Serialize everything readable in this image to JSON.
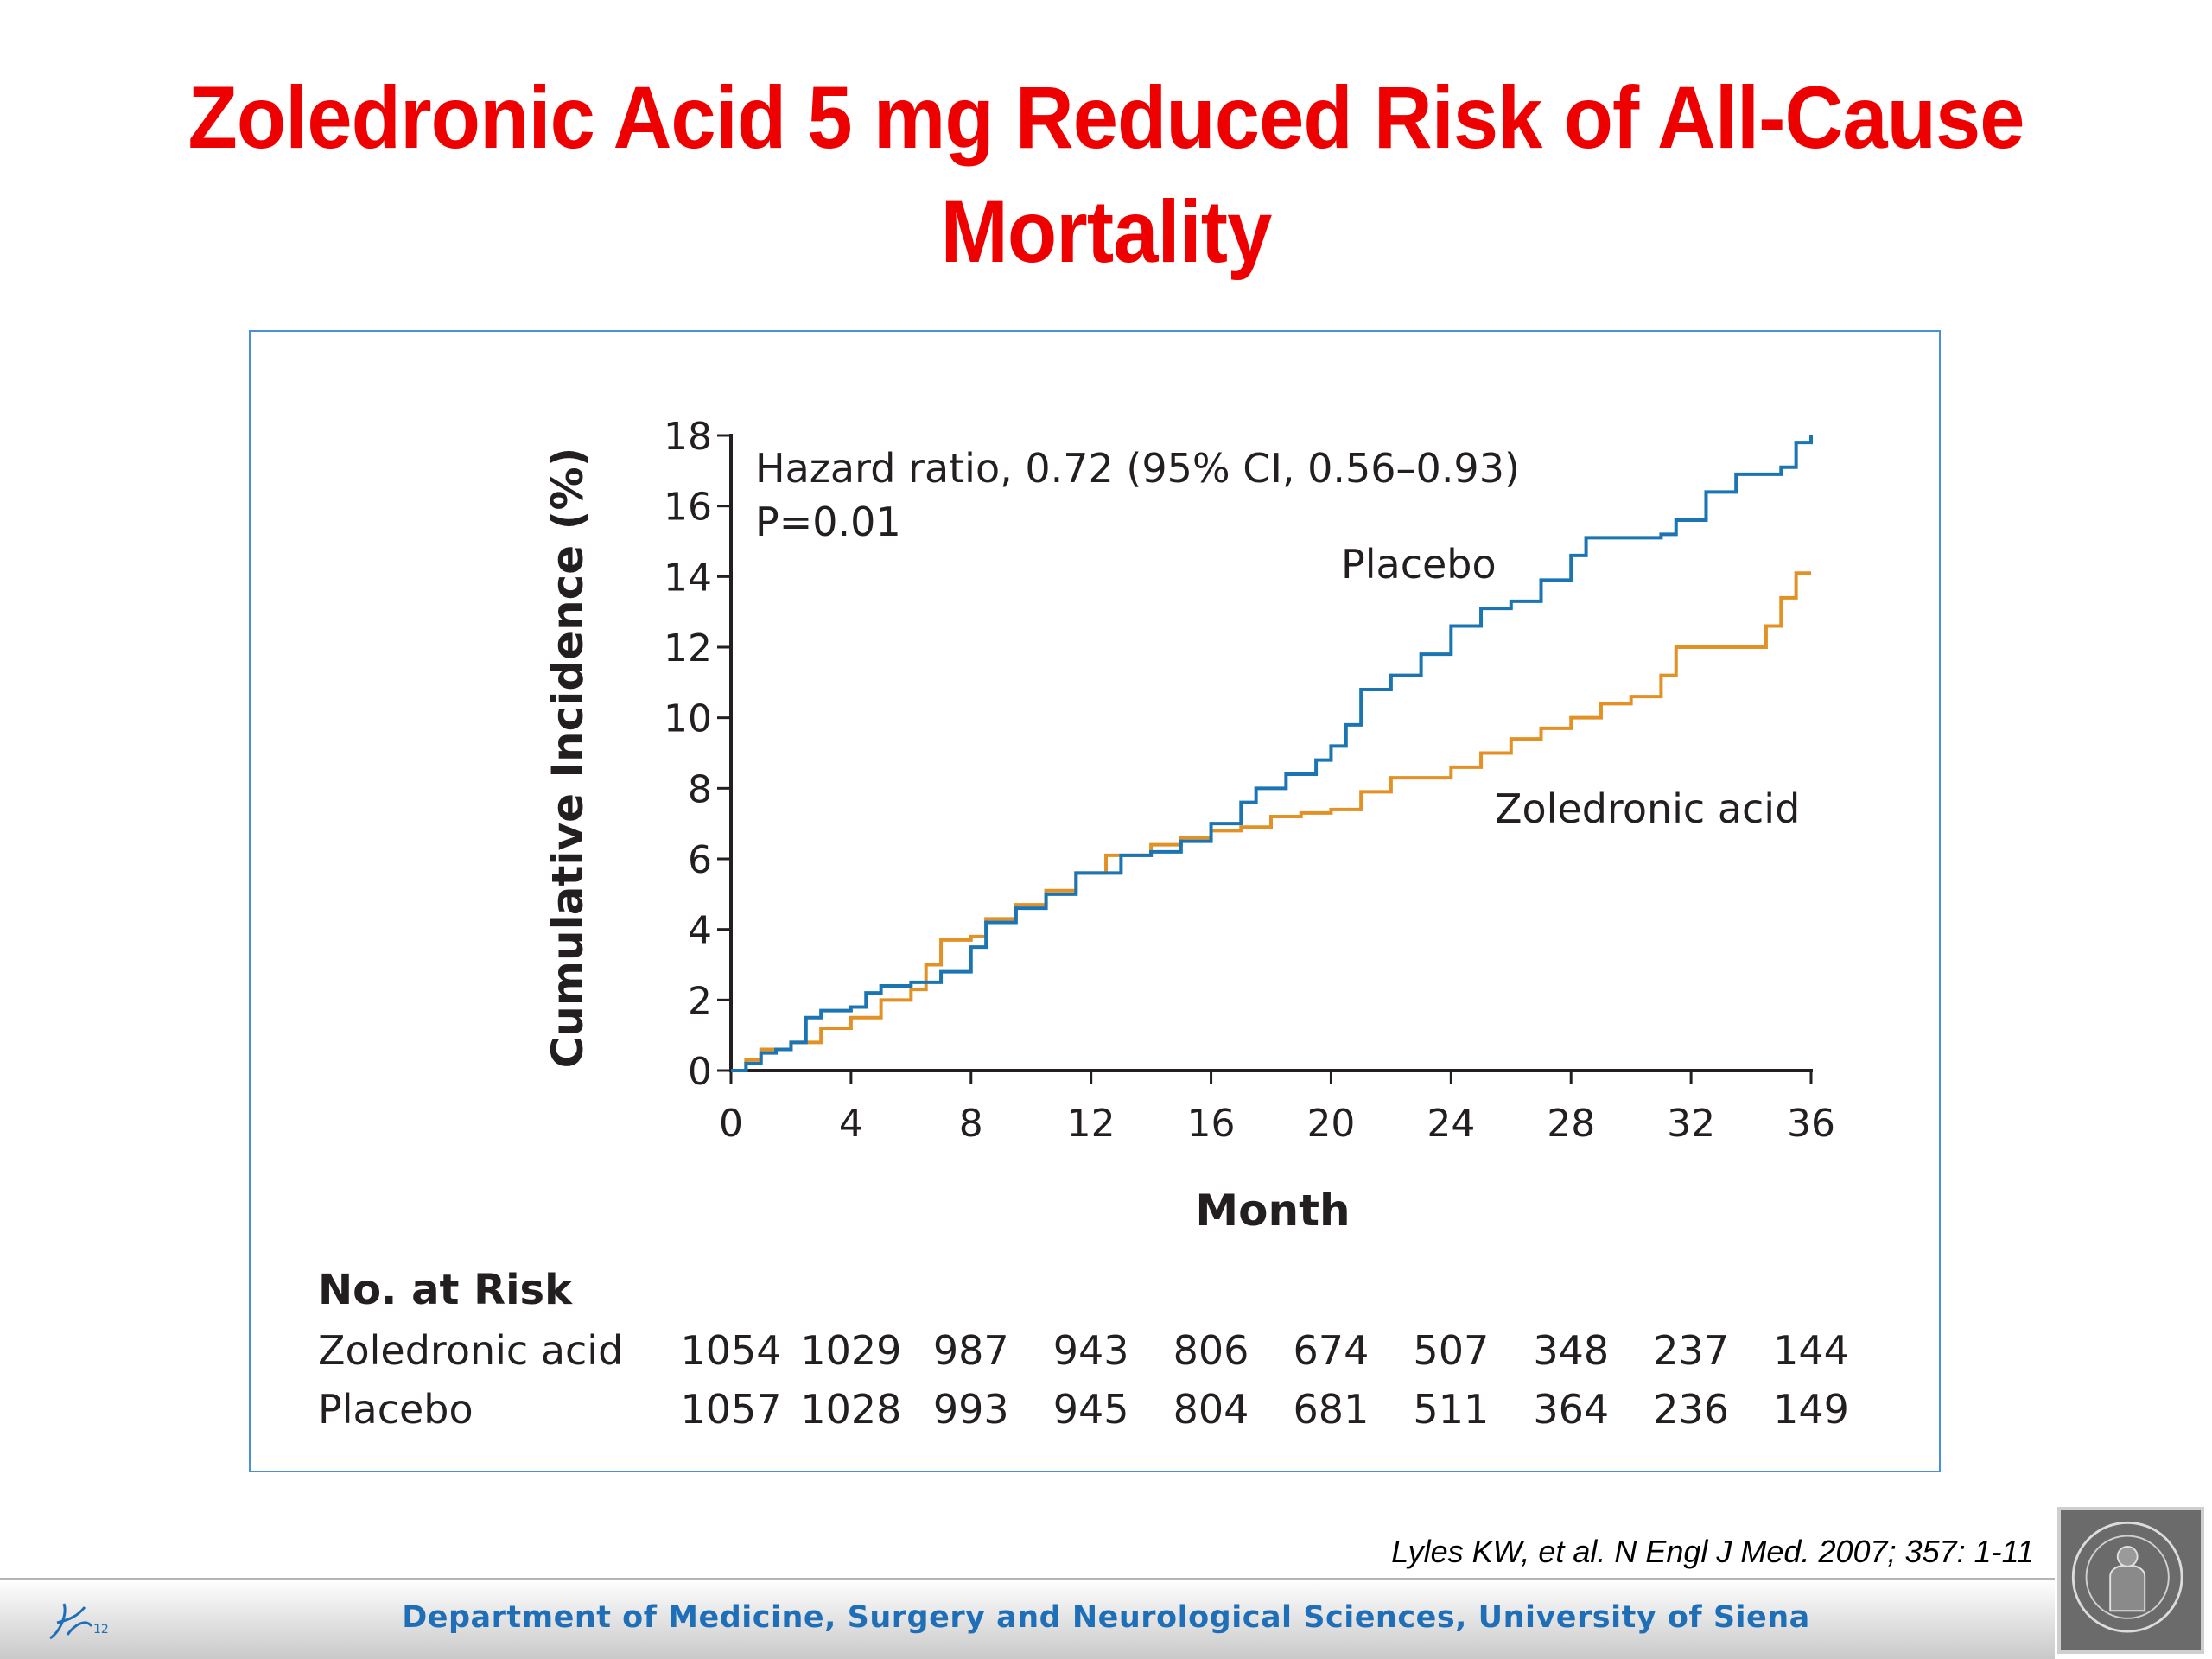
{
  "slide": {
    "title_line1": "Zoledronic Acid 5 mg Reduced Risk of All-Cause",
    "title_line2": "Mortality",
    "citation": "Lyles KW, et al. N Engl J Med. 2007; 357: 1-11",
    "footer": "Department of Medicine, Surgery and Neurological Sciences, University of Siena",
    "footer_logo_page": "12",
    "colors": {
      "title": "#ee0000",
      "footer_text": "#1f6fb8",
      "frame": "#4a90d9"
    }
  },
  "chart_data": {
    "type": "line",
    "title": "",
    "xlabel": "Month",
    "ylabel": "Cumulative Incidence (%)",
    "xlim": [
      0,
      36
    ],
    "ylim": [
      0,
      18
    ],
    "xticks": [
      0,
      4,
      8,
      12,
      16,
      20,
      24,
      28,
      32,
      36
    ],
    "yticks": [
      0,
      2,
      4,
      6,
      8,
      10,
      12,
      14,
      16,
      18
    ],
    "grid": false,
    "legend": "inline labels",
    "annotation_lines": [
      "Hazard ratio, 0.72 (95% CI, 0.56–0.93)",
      "P=0.01"
    ],
    "series": [
      {
        "name": "Placebo",
        "color": "#1b75b3",
        "step": true,
        "points": [
          [
            0,
            0
          ],
          [
            0.5,
            0.2
          ],
          [
            1,
            0.5
          ],
          [
            1.5,
            0.6
          ],
          [
            2,
            0.8
          ],
          [
            2.5,
            1.5
          ],
          [
            3,
            1.7
          ],
          [
            4,
            1.8
          ],
          [
            4.5,
            2.2
          ],
          [
            5,
            2.4
          ],
          [
            6,
            2.5
          ],
          [
            7,
            2.8
          ],
          [
            8,
            3.5
          ],
          [
            8.5,
            4.2
          ],
          [
            9.5,
            4.6
          ],
          [
            10.5,
            5.0
          ],
          [
            11.5,
            5.6
          ],
          [
            13,
            6.1
          ],
          [
            14,
            6.2
          ],
          [
            15,
            6.5
          ],
          [
            16,
            7.0
          ],
          [
            17,
            7.6
          ],
          [
            17.5,
            8.0
          ],
          [
            18.5,
            8.4
          ],
          [
            19.5,
            8.8
          ],
          [
            20,
            9.2
          ],
          [
            20.5,
            9.8
          ],
          [
            21,
            10.8
          ],
          [
            22,
            11.2
          ],
          [
            23,
            11.8
          ],
          [
            24,
            12.6
          ],
          [
            25,
            13.1
          ],
          [
            26,
            13.3
          ],
          [
            27,
            13.9
          ],
          [
            28,
            14.6
          ],
          [
            28.5,
            15.1
          ],
          [
            30,
            15.1
          ],
          [
            31,
            15.2
          ],
          [
            31.5,
            15.6
          ],
          [
            32.5,
            16.4
          ],
          [
            33.5,
            16.9
          ],
          [
            35,
            17.1
          ],
          [
            35.5,
            17.8
          ],
          [
            36,
            18.0
          ]
        ]
      },
      {
        "name": "Zoledronic acid",
        "color": "#e39124",
        "step": true,
        "points": [
          [
            0,
            0
          ],
          [
            0.5,
            0.3
          ],
          [
            1,
            0.6
          ],
          [
            2,
            0.8
          ],
          [
            3,
            1.2
          ],
          [
            4,
            1.5
          ],
          [
            5,
            2.0
          ],
          [
            6,
            2.3
          ],
          [
            6.5,
            3.0
          ],
          [
            7,
            3.7
          ],
          [
            8,
            3.8
          ],
          [
            8.5,
            4.3
          ],
          [
            9.5,
            4.7
          ],
          [
            10.5,
            5.1
          ],
          [
            11.5,
            5.6
          ],
          [
            12.5,
            6.1
          ],
          [
            14,
            6.4
          ],
          [
            15,
            6.6
          ],
          [
            16,
            6.8
          ],
          [
            17,
            6.9
          ],
          [
            18,
            7.2
          ],
          [
            19,
            7.3
          ],
          [
            20,
            7.4
          ],
          [
            21,
            7.9
          ],
          [
            22,
            8.3
          ],
          [
            24,
            8.6
          ],
          [
            25,
            9.0
          ],
          [
            26,
            9.4
          ],
          [
            27,
            9.7
          ],
          [
            28,
            10.0
          ],
          [
            29,
            10.4
          ],
          [
            30,
            10.6
          ],
          [
            31,
            11.2
          ],
          [
            31.5,
            12.0
          ],
          [
            33,
            12.0
          ],
          [
            34,
            12.0
          ],
          [
            34.5,
            12.6
          ],
          [
            35,
            13.4
          ],
          [
            35.5,
            14.1
          ],
          [
            36,
            14.1
          ]
        ]
      }
    ],
    "risk_table": {
      "title": "No. at Risk",
      "rows": [
        {
          "label": "Zoledronic acid",
          "values": [
            "1054",
            "1029",
            "987",
            "943",
            "806",
            "674",
            "507",
            "348",
            "237",
            "144"
          ]
        },
        {
          "label": "Placebo",
          "values": [
            "1057",
            "1028",
            "993",
            "945",
            "804",
            "681",
            "511",
            "364",
            "236",
            "149"
          ]
        }
      ]
    }
  }
}
